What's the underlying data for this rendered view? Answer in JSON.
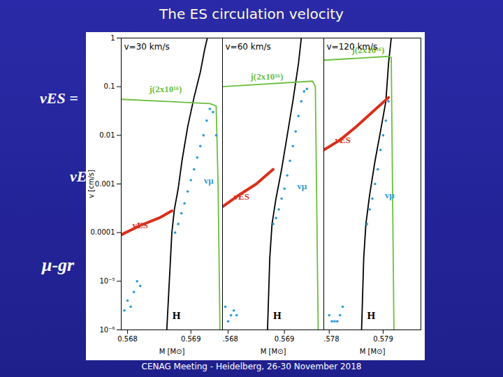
{
  "slide": {
    "title": "The ES circulation velocity",
    "footer": "CENAG Meeting - Heidelberg, 26-30 November 2018",
    "fragments": [
      "vES =",
      "vE",
      "μ-gr"
    ]
  },
  "chart_data": [
    {
      "type": "line",
      "title": "v=30 km/s",
      "xlabel": "M [M⊙]",
      "ylabel": "v [cm/s]",
      "log": "y",
      "xlim": [
        0.5679,
        0.5695
      ],
      "xticks": [
        0.568,
        0.569
      ],
      "ylim": [
        1e-06,
        1
      ],
      "yticks": [
        {
          "value": 1e-06,
          "label": "10⁻⁶"
        },
        {
          "value": 1e-05,
          "label": "10⁻⁵"
        },
        0.0001,
        0.001,
        0.01,
        0.1,
        1
      ],
      "series": [
        {
          "name": "H",
          "color": "#000000",
          "type": "line",
          "line_style": "solid",
          "x": [
            0.56862,
            0.56866,
            0.5687,
            0.56874,
            0.5688,
            0.56886,
            0.56895,
            0.56905,
            0.56915,
            0.56922,
            0.56926
          ],
          "values": [
            1e-06,
            1e-05,
            0.0001,
            0.0003,
            0.0008,
            0.003,
            0.015,
            0.06,
            0.2,
            0.6,
            1
          ]
        },
        {
          "name": "j(2x10¹⁶)",
          "color": "#6cbf3f",
          "type": "line",
          "line_style": "solid",
          "x": [
            0.5679,
            0.5693,
            0.5694,
            0.56943,
            0.56946
          ],
          "values": [
            0.055,
            0.045,
            0.04,
            0.001,
            1e-06
          ]
        },
        {
          "name": "vES",
          "color": "#d9301c",
          "type": "line",
          "line_style": "bold",
          "x": [
            0.5679,
            0.5682,
            0.5685,
            0.5687
          ],
          "values": [
            9e-05,
            0.00014,
            0.0002,
            0.00028
          ]
        },
        {
          "name": "vμ",
          "color": "#2a9ad8",
          "type": "scatter",
          "marker": "dot",
          "x": [
            0.56795,
            0.568,
            0.56805,
            0.5681,
            0.56815,
            0.5682,
            0.56875,
            0.5688,
            0.56885,
            0.5689,
            0.56895,
            0.569,
            0.56905,
            0.5691,
            0.56915,
            0.5692,
            0.56925,
            0.5693,
            0.56935,
            0.5694
          ],
          "values": [
            2.5e-06,
            4e-06,
            3e-06,
            6e-06,
            1e-05,
            8e-06,
            0.0001,
            0.00015,
            0.00025,
            0.0004,
            0.0007,
            0.0012,
            0.002,
            0.0035,
            0.006,
            0.01,
            0.02,
            0.035,
            0.03,
            0.01
          ]
        }
      ]
    },
    {
      "type": "line",
      "title": "v=60 km/s",
      "xlabel": "M [M⊙]",
      "log": "y",
      "tick_labels": "x",
      "xlim": [
        0.5679,
        0.5697
      ],
      "xticks": [
        0.568,
        0.569
      ],
      "ylim": [
        1e-06,
        1
      ],
      "yticks": [
        1e-06,
        1e-05,
        0.0001,
        0.001,
        0.01,
        0.1,
        1
      ],
      "series": [
        {
          "name": "H",
          "color": "#000000",
          "type": "line",
          "line_style": "solid",
          "x": [
            0.5687,
            0.56874,
            0.56878,
            0.56885,
            0.56895,
            0.56905,
            0.56915,
            0.56925,
            0.5693
          ],
          "values": [
            1e-06,
            3e-05,
            0.00015,
            0.0005,
            0.002,
            0.01,
            0.05,
            0.3,
            1
          ]
        },
        {
          "name": "j(2x10¹⁶)",
          "color": "#6cbf3f",
          "type": "line",
          "line_style": "solid",
          "x": [
            0.5679,
            0.5695,
            0.56955,
            0.5696
          ],
          "values": [
            0.1,
            0.13,
            0.1,
            1e-06
          ]
        },
        {
          "name": "vES",
          "color": "#d9301c",
          "type": "line",
          "line_style": "bold",
          "x": [
            0.5679,
            0.5682,
            0.5685,
            0.5688
          ],
          "values": [
            0.00034,
            0.0006,
            0.001,
            0.002
          ]
        },
        {
          "name": "vμ",
          "color": "#2a9ad8",
          "type": "scatter",
          "marker": "dot",
          "x": [
            0.56795,
            0.568,
            0.56805,
            0.5681,
            0.56815,
            0.5688,
            0.56885,
            0.5689,
            0.56895,
            0.569,
            0.56905,
            0.5691,
            0.56915,
            0.5692,
            0.56925,
            0.5693,
            0.56935,
            0.5694
          ],
          "values": [
            3e-06,
            1.5e-06,
            2e-06,
            2.5e-06,
            2e-06,
            0.00015,
            0.0002,
            0.0003,
            0.0005,
            0.0008,
            0.0015,
            0.003,
            0.006,
            0.012,
            0.025,
            0.05,
            0.08,
            0.09
          ]
        }
      ]
    },
    {
      "type": "line",
      "title": "v=120 km/s",
      "xlabel": "M [M⊙]",
      "log": "y",
      "tick_labels": "x",
      "xlim": [
        0.5779,
        0.5797
      ],
      "xticks": [
        0.578,
        0.579
      ],
      "ylim": [
        1e-06,
        1
      ],
      "yticks": [
        1e-06,
        1e-05,
        0.0001,
        0.001,
        0.01,
        0.1,
        1
      ],
      "series": [
        {
          "name": "H",
          "color": "#000000",
          "type": "line",
          "line_style": "solid",
          "x": [
            0.5786,
            0.57864,
            0.57868,
            0.57875,
            0.57885,
            0.57895,
            0.57905,
            0.5791,
            0.57915
          ],
          "values": [
            1e-06,
            3e-05,
            0.00015,
            0.0006,
            0.003,
            0.012,
            0.05,
            0.3,
            1
          ]
        },
        {
          "name": "j(2x10¹⁶)",
          "color": "#6cbf3f",
          "type": "line",
          "line_style": "solid",
          "x": [
            0.5779,
            0.5791,
            0.57915,
            0.5792
          ],
          "values": [
            0.35,
            0.42,
            0.4,
            1e-06
          ]
        },
        {
          "name": "vES",
          "color": "#d9301c",
          "type": "line",
          "line_style": "bold",
          "x": [
            0.5779,
            0.5782,
            0.5785,
            0.5788,
            0.5791
          ],
          "values": [
            0.005,
            0.008,
            0.015,
            0.03,
            0.06
          ]
        },
        {
          "name": "vμ",
          "color": "#2a9ad8",
          "type": "scatter",
          "marker": "dot",
          "x": [
            0.578,
            0.57805,
            0.5781,
            0.57815,
            0.5782,
            0.57825,
            0.5787,
            0.57875,
            0.5788,
            0.57885,
            0.5789,
            0.57895,
            0.579,
            0.57905,
            0.5791
          ],
          "values": [
            2e-06,
            1.5e-06,
            1.5e-06,
            1.5e-06,
            2e-06,
            3e-06,
            0.00015,
            0.0003,
            0.0005,
            0.001,
            0.002,
            0.005,
            0.01,
            0.02,
            0.05
          ]
        }
      ]
    }
  ]
}
